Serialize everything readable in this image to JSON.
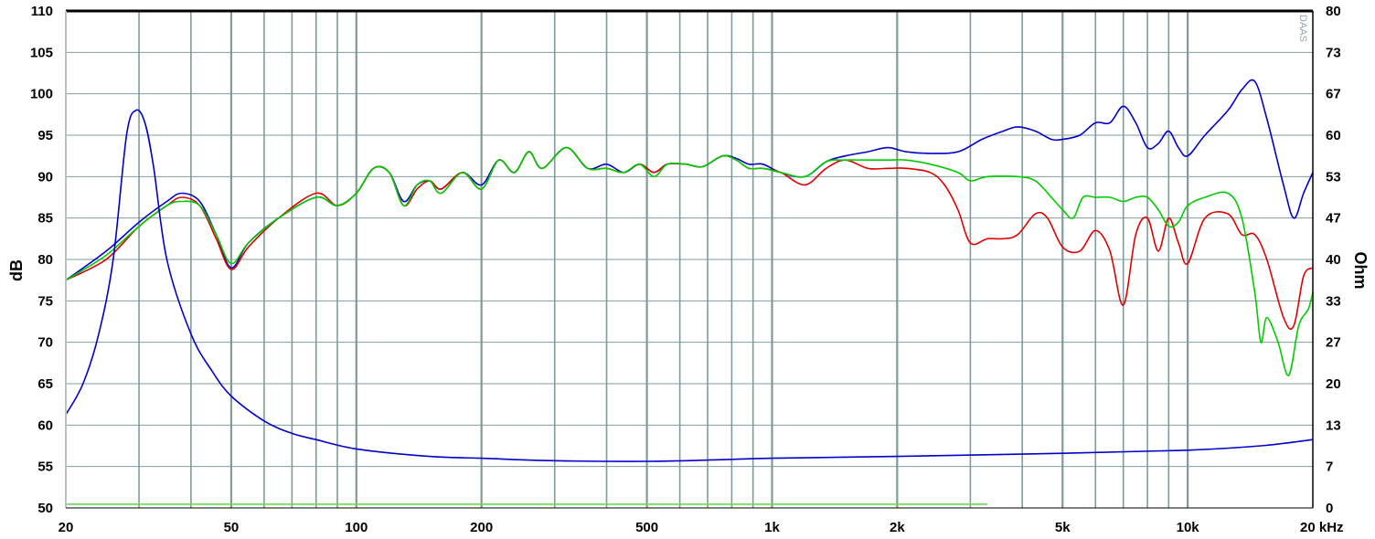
{
  "chart_data": {
    "type": "line",
    "xscale": "log",
    "xlim": [
      20,
      20000
    ],
    "ylim_left": [
      50,
      110
    ],
    "ylim_right": [
      0,
      80
    ],
    "ylabel_left": "dB",
    "ylabel_right": "Ohm",
    "xticks": [
      {
        "v": 20,
        "t": "20"
      },
      {
        "v": 50,
        "t": "50"
      },
      {
        "v": 100,
        "t": "100"
      },
      {
        "v": 200,
        "t": "200"
      },
      {
        "v": 500,
        "t": "500"
      },
      {
        "v": 1000,
        "t": "1k"
      },
      {
        "v": 2000,
        "t": "2k"
      },
      {
        "v": 5000,
        "t": "5k"
      },
      {
        "v": 10000,
        "t": "10k"
      },
      {
        "v": 20000,
        "t": "20 kHz"
      }
    ],
    "yticks_left": [
      "110",
      "105",
      "100",
      "95",
      "90",
      "85",
      "80",
      "75",
      "70",
      "65",
      "60",
      "55",
      "50"
    ],
    "yticks_right": [
      "80",
      "73",
      "67",
      "60",
      "53",
      "47",
      "40",
      "33",
      "27",
      "20",
      "13",
      "7",
      "0"
    ],
    "watermark": "DAAS",
    "colors": {
      "grid": "#7f9b9b",
      "blue": "#0000cc",
      "red": "#e00000",
      "green": "#00cc00",
      "lightgreen": "#66dd55"
    },
    "series": [
      {
        "color": "blue",
        "points": [
          [
            20,
            77.5
          ],
          [
            25,
            81
          ],
          [
            30,
            84.5
          ],
          [
            35,
            87
          ],
          [
            38,
            88
          ],
          [
            42,
            87
          ],
          [
            46,
            83
          ],
          [
            50,
            79
          ],
          [
            55,
            82
          ],
          [
            65,
            85
          ],
          [
            80,
            87.5
          ],
          [
            90,
            86.5
          ],
          [
            100,
            88
          ],
          [
            110,
            91
          ],
          [
            120,
            90.5
          ],
          [
            130,
            87
          ],
          [
            140,
            89
          ],
          [
            150,
            89.5
          ],
          [
            160,
            88.5
          ],
          [
            180,
            90.5
          ],
          [
            200,
            89
          ],
          [
            220,
            92
          ],
          [
            240,
            90.5
          ],
          [
            260,
            93
          ],
          [
            280,
            91
          ],
          [
            320,
            93.5
          ],
          [
            360,
            91
          ],
          [
            400,
            91.5
          ],
          [
            440,
            90.5
          ],
          [
            480,
            91.5
          ],
          [
            520,
            90.5
          ],
          [
            560,
            91.5
          ],
          [
            620,
            91.5
          ],
          [
            680,
            91.2
          ],
          [
            760,
            92.5
          ],
          [
            820,
            92.2
          ],
          [
            880,
            91.5
          ],
          [
            950,
            91.5
          ],
          [
            1050,
            90.5
          ],
          [
            1200,
            90
          ],
          [
            1350,
            91.8
          ],
          [
            1500,
            92.5
          ],
          [
            1700,
            93
          ],
          [
            1900,
            93.5
          ],
          [
            2100,
            93
          ],
          [
            2400,
            92.8
          ],
          [
            2800,
            93
          ],
          [
            3200,
            94.5
          ],
          [
            3600,
            95.5
          ],
          [
            3900,
            96
          ],
          [
            4300,
            95.5
          ],
          [
            4700,
            94.5
          ],
          [
            5000,
            94.5
          ],
          [
            5500,
            95
          ],
          [
            6000,
            96.5
          ],
          [
            6500,
            96.5
          ],
          [
            7000,
            98.5
          ],
          [
            7500,
            96.5
          ],
          [
            8000,
            93.5
          ],
          [
            8500,
            94
          ],
          [
            9000,
            95.5
          ],
          [
            9500,
            93.5
          ],
          [
            10000,
            92.5
          ],
          [
            11000,
            95
          ],
          [
            12500,
            98
          ],
          [
            13500,
            100.5
          ],
          [
            14500,
            101.5
          ],
          [
            15500,
            97
          ],
          [
            17000,
            89
          ],
          [
            18000,
            85
          ],
          [
            19000,
            88
          ],
          [
            20000,
            90.5
          ]
        ]
      },
      {
        "color": "red",
        "points": [
          [
            20,
            77.5
          ],
          [
            25,
            80
          ],
          [
            30,
            84
          ],
          [
            35,
            86.5
          ],
          [
            38,
            87.5
          ],
          [
            42,
            86.5
          ],
          [
            46,
            82.5
          ],
          [
            50,
            78.8
          ],
          [
            55,
            81.5
          ],
          [
            65,
            85
          ],
          [
            80,
            88
          ],
          [
            90,
            86.5
          ],
          [
            100,
            88
          ],
          [
            110,
            91
          ],
          [
            120,
            90.5
          ],
          [
            130,
            86.5
          ],
          [
            140,
            88.5
          ],
          [
            150,
            89.5
          ],
          [
            160,
            88.5
          ],
          [
            180,
            90.5
          ],
          [
            200,
            88.5
          ],
          [
            220,
            92
          ],
          [
            240,
            90.5
          ],
          [
            260,
            93
          ],
          [
            280,
            91
          ],
          [
            320,
            93.5
          ],
          [
            360,
            91
          ],
          [
            400,
            91
          ],
          [
            440,
            90.5
          ],
          [
            480,
            91.5
          ],
          [
            520,
            90.5
          ],
          [
            560,
            91.5
          ],
          [
            620,
            91.5
          ],
          [
            680,
            91.2
          ],
          [
            760,
            92.5
          ],
          [
            820,
            92
          ],
          [
            880,
            91
          ],
          [
            950,
            91
          ],
          [
            1050,
            90.5
          ],
          [
            1200,
            89
          ],
          [
            1350,
            91
          ],
          [
            1500,
            92
          ],
          [
            1700,
            91
          ],
          [
            1900,
            91
          ],
          [
            2100,
            91
          ],
          [
            2400,
            90.5
          ],
          [
            2600,
            89
          ],
          [
            2800,
            86
          ],
          [
            3000,
            82
          ],
          [
            3300,
            82.5
          ],
          [
            3600,
            82.5
          ],
          [
            3900,
            83
          ],
          [
            4300,
            85.5
          ],
          [
            4600,
            85
          ],
          [
            5000,
            81.5
          ],
          [
            5500,
            81
          ],
          [
            6000,
            83.5
          ],
          [
            6500,
            81
          ],
          [
            7000,
            74.5
          ],
          [
            7500,
            83
          ],
          [
            8000,
            85
          ],
          [
            8500,
            81
          ],
          [
            9000,
            85
          ],
          [
            9500,
            82
          ],
          [
            10000,
            79.5
          ],
          [
            11000,
            85
          ],
          [
            12500,
            85.5
          ],
          [
            13500,
            83
          ],
          [
            14500,
            83
          ],
          [
            15500,
            80
          ],
          [
            17000,
            73
          ],
          [
            18000,
            72
          ],
          [
            19000,
            78
          ],
          [
            20000,
            79
          ]
        ]
      },
      {
        "color": "green",
        "points": [
          [
            20,
            77.5
          ],
          [
            25,
            80.5
          ],
          [
            30,
            84
          ],
          [
            35,
            86.5
          ],
          [
            38,
            87
          ],
          [
            42,
            86.5
          ],
          [
            46,
            83
          ],
          [
            50,
            79.5
          ],
          [
            55,
            82
          ],
          [
            65,
            85
          ],
          [
            80,
            87.5
          ],
          [
            90,
            86.5
          ],
          [
            100,
            88
          ],
          [
            110,
            91
          ],
          [
            120,
            90.5
          ],
          [
            130,
            86.5
          ],
          [
            140,
            89
          ],
          [
            150,
            89.5
          ],
          [
            160,
            88
          ],
          [
            180,
            90.5
          ],
          [
            200,
            88.5
          ],
          [
            220,
            92
          ],
          [
            240,
            90.5
          ],
          [
            260,
            93
          ],
          [
            280,
            91
          ],
          [
            320,
            93.5
          ],
          [
            360,
            91
          ],
          [
            400,
            91
          ],
          [
            440,
            90.5
          ],
          [
            480,
            91.5
          ],
          [
            520,
            90
          ],
          [
            560,
            91.5
          ],
          [
            620,
            91.5
          ],
          [
            680,
            91.2
          ],
          [
            760,
            92.5
          ],
          [
            820,
            92
          ],
          [
            880,
            91
          ],
          [
            950,
            91
          ],
          [
            1050,
            90.5
          ],
          [
            1200,
            90
          ],
          [
            1350,
            91.8
          ],
          [
            1500,
            92
          ],
          [
            1700,
            92
          ],
          [
            1900,
            92
          ],
          [
            2100,
            92
          ],
          [
            2400,
            91.5
          ],
          [
            2800,
            90.5
          ],
          [
            3000,
            89.5
          ],
          [
            3300,
            90
          ],
          [
            3900,
            90
          ],
          [
            4300,
            89.5
          ],
          [
            4700,
            87.5
          ],
          [
            5000,
            86
          ],
          [
            5300,
            85
          ],
          [
            5600,
            87.5
          ],
          [
            6000,
            87.5
          ],
          [
            6500,
            87.5
          ],
          [
            7000,
            87
          ],
          [
            7500,
            87.5
          ],
          [
            8000,
            87.5
          ],
          [
            8500,
            86
          ],
          [
            9000,
            84
          ],
          [
            9500,
            84.5
          ],
          [
            10000,
            86.5
          ],
          [
            11000,
            87.5
          ],
          [
            12500,
            88
          ],
          [
            13500,
            85
          ],
          [
            14500,
            76
          ],
          [
            15000,
            70
          ],
          [
            15500,
            73
          ],
          [
            16500,
            70
          ],
          [
            17500,
            66
          ],
          [
            18500,
            72
          ],
          [
            19500,
            74
          ],
          [
            20000,
            76
          ]
        ]
      },
      {
        "color": "blue",
        "axis": "right",
        "points": [
          [
            20,
            15
          ],
          [
            22,
            20
          ],
          [
            24,
            28
          ],
          [
            26,
            40
          ],
          [
            28,
            60
          ],
          [
            29.5,
            64
          ],
          [
            31,
            62
          ],
          [
            32.5,
            55
          ],
          [
            35,
            40
          ],
          [
            40,
            28
          ],
          [
            45,
            22
          ],
          [
            50,
            18
          ],
          [
            60,
            14
          ],
          [
            70,
            12
          ],
          [
            80,
            11
          ],
          [
            100,
            9.5
          ],
          [
            150,
            8.3
          ],
          [
            200,
            8
          ],
          [
            300,
            7.6
          ],
          [
            500,
            7.5
          ],
          [
            700,
            7.7
          ],
          [
            1000,
            8
          ],
          [
            2000,
            8.3
          ],
          [
            5000,
            8.8
          ],
          [
            10000,
            9.3
          ],
          [
            15000,
            10
          ],
          [
            20000,
            11
          ]
        ]
      },
      {
        "color": "lightgreen",
        "axis": "right",
        "points": [
          [
            20,
            0.6
          ],
          [
            3300,
            0.6
          ]
        ]
      }
    ]
  }
}
